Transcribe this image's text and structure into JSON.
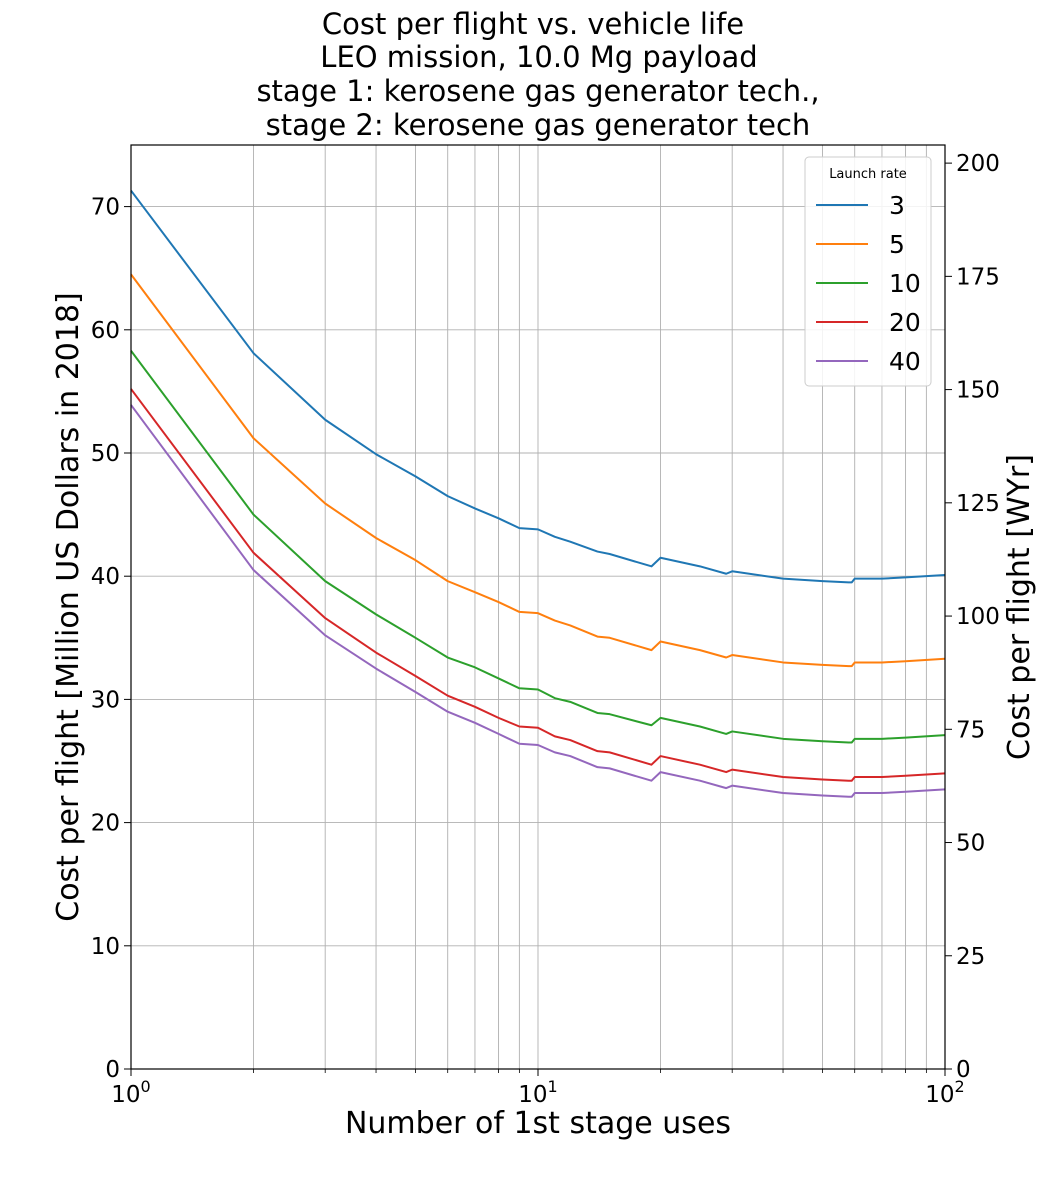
{
  "chart_data": {
    "type": "line",
    "title_lines": [
      "Cost per flight vs. vehicle life",
      "LEO mission, 10.0 Mg payload",
      "stage 1: kerosene gas generator tech.,",
      "stage 2: kerosene gas generator tech"
    ],
    "xlabel": "Number of 1st stage uses",
    "ylabel": "Cost per flight [Million US Dollars in 2018]",
    "ylabel_right": "Cost per flight [WYr]",
    "xscale": "log",
    "xlim": [
      1,
      100
    ],
    "ylim": [
      0,
      75
    ],
    "ylim_right": [
      0,
      204
    ],
    "x_ticks": [
      {
        "base": "10",
        "exp": "0",
        "value": 1
      },
      {
        "base": "10",
        "exp": "1",
        "value": 10
      },
      {
        "base": "10",
        "exp": "2",
        "value": 100
      }
    ],
    "y_ticks": [
      "0",
      "10",
      "20",
      "30",
      "40",
      "50",
      "60",
      "70"
    ],
    "y_ticks_right": [
      "0",
      "25",
      "50",
      "75",
      "100",
      "125",
      "150",
      "175",
      "200"
    ],
    "grid": true,
    "legend": {
      "title": "Launch rate",
      "position": "top-right"
    },
    "x": [
      1,
      2,
      3,
      4,
      5,
      6,
      7,
      8,
      9,
      10,
      11,
      12,
      14,
      15,
      19,
      20,
      25,
      29,
      30,
      40,
      50,
      58,
      59,
      60,
      70,
      80,
      100
    ],
    "series": [
      {
        "name": "3",
        "color": "#1f77b4",
        "values": [
          71.3,
          58.1,
          52.7,
          49.9,
          48.1,
          46.5,
          45.5,
          44.7,
          43.9,
          43.8,
          43.2,
          42.8,
          42.0,
          41.8,
          40.8,
          41.5,
          40.8,
          40.2,
          40.4,
          39.8,
          39.6,
          39.5,
          39.5,
          39.8,
          39.8,
          39.9,
          40.1
        ]
      },
      {
        "name": "5",
        "color": "#ff7f0e",
        "values": [
          64.5,
          51.2,
          45.9,
          43.1,
          41.3,
          39.6,
          38.7,
          37.9,
          37.1,
          37.0,
          36.4,
          36.0,
          35.1,
          35.0,
          34.0,
          34.7,
          34.0,
          33.4,
          33.6,
          33.0,
          32.8,
          32.7,
          32.7,
          33.0,
          33.0,
          33.1,
          33.3
        ]
      },
      {
        "name": "10",
        "color": "#2ca02c",
        "values": [
          58.3,
          45.0,
          39.6,
          36.9,
          35.0,
          33.4,
          32.6,
          31.7,
          30.9,
          30.8,
          30.1,
          29.8,
          28.9,
          28.8,
          27.9,
          28.5,
          27.8,
          27.2,
          27.4,
          26.8,
          26.6,
          26.5,
          26.5,
          26.8,
          26.8,
          26.9,
          27.1
        ]
      },
      {
        "name": "20",
        "color": "#d62728",
        "values": [
          55.2,
          41.9,
          36.6,
          33.8,
          31.9,
          30.3,
          29.4,
          28.5,
          27.8,
          27.7,
          27.0,
          26.7,
          25.8,
          25.7,
          24.7,
          25.4,
          24.7,
          24.1,
          24.3,
          23.7,
          23.5,
          23.4,
          23.4,
          23.7,
          23.7,
          23.8,
          24.0
        ]
      },
      {
        "name": "40",
        "color": "#9467bd",
        "values": [
          53.9,
          40.5,
          35.2,
          32.5,
          30.6,
          29.0,
          28.1,
          27.2,
          26.4,
          26.3,
          25.7,
          25.4,
          24.5,
          24.4,
          23.4,
          24.1,
          23.4,
          22.8,
          23.0,
          22.4,
          22.2,
          22.1,
          22.1,
          22.4,
          22.4,
          22.5,
          22.7
        ]
      }
    ]
  }
}
